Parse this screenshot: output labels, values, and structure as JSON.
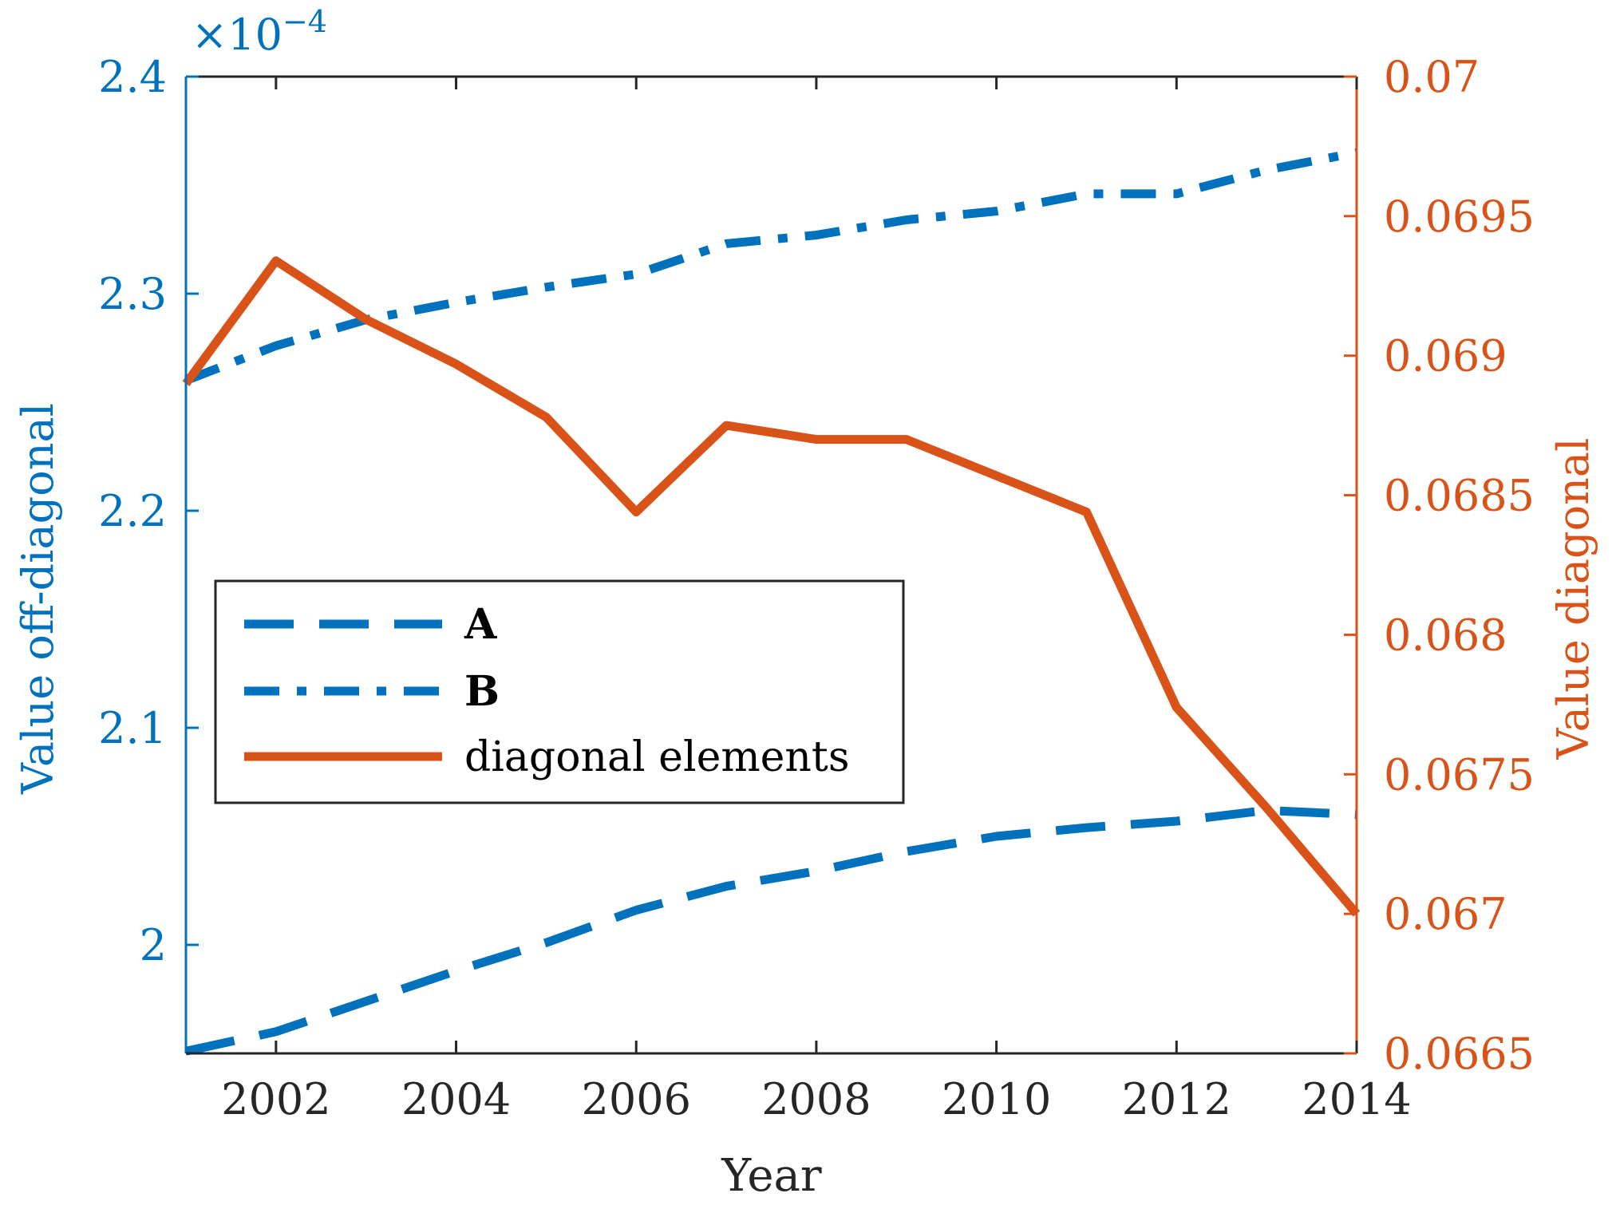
{
  "chart_data": {
    "type": "line",
    "title": "",
    "xlabel": "Year",
    "ylabel_left": "Value off-diagonal",
    "ylabel_right": "Value diagonal",
    "exponent_label": "×10",
    "exponent_power": "−4",
    "x": [
      2001,
      2002,
      2003,
      2004,
      2005,
      2006,
      2007,
      2008,
      2009,
      2010,
      2011,
      2012,
      2013,
      2014
    ],
    "xlim": [
      2001,
      2014
    ],
    "xticks": [
      2002,
      2004,
      2006,
      2008,
      2010,
      2012,
      2014
    ],
    "xtick_labels": [
      "2002",
      "2004",
      "2006",
      "2008",
      "2010",
      "2012",
      "2014"
    ],
    "ylim_left": [
      1.95,
      2.4
    ],
    "yticks_left": [
      2.0,
      2.1,
      2.2,
      2.3,
      2.4
    ],
    "ytick_labels_left": [
      "2",
      "2.1",
      "2.2",
      "2.3",
      "2.4"
    ],
    "ylim_right": [
      0.0665,
      0.07
    ],
    "yticks_right": [
      0.0665,
      0.067,
      0.0675,
      0.068,
      0.0685,
      0.069,
      0.0695,
      0.07
    ],
    "ytick_labels_right": [
      "0.0665",
      "0.067",
      "0.0675",
      "0.068",
      "0.0685",
      "0.069",
      "0.0695",
      "0.07"
    ],
    "series": [
      {
        "name": "A",
        "axis": "left",
        "style": "dashed",
        "color": "#0072BD",
        "values": [
          1.951,
          1.96,
          1.974,
          1.988,
          2.001,
          2.016,
          2.027,
          2.034,
          2.043,
          2.05,
          2.054,
          2.057,
          2.062,
          2.06
        ]
      },
      {
        "name": "B",
        "axis": "left",
        "style": "dashdot",
        "color": "#0072BD",
        "values": [
          2.26,
          2.276,
          2.288,
          2.296,
          2.303,
          2.309,
          2.323,
          2.327,
          2.334,
          2.338,
          2.346,
          2.346,
          2.357,
          2.365
        ]
      },
      {
        "name": "diagonal elements",
        "axis": "right",
        "style": "solid",
        "color": "#D95319",
        "values": [
          0.0689,
          0.06934,
          0.06913,
          0.06897,
          0.06878,
          0.06844,
          0.06875,
          0.0687,
          0.0687,
          0.06857,
          0.06844,
          0.06774,
          0.06738,
          0.067
        ]
      }
    ],
    "legend": {
      "position": "center-left",
      "entries": [
        "A",
        "B",
        "diagonal elements"
      ]
    },
    "grid": false
  }
}
